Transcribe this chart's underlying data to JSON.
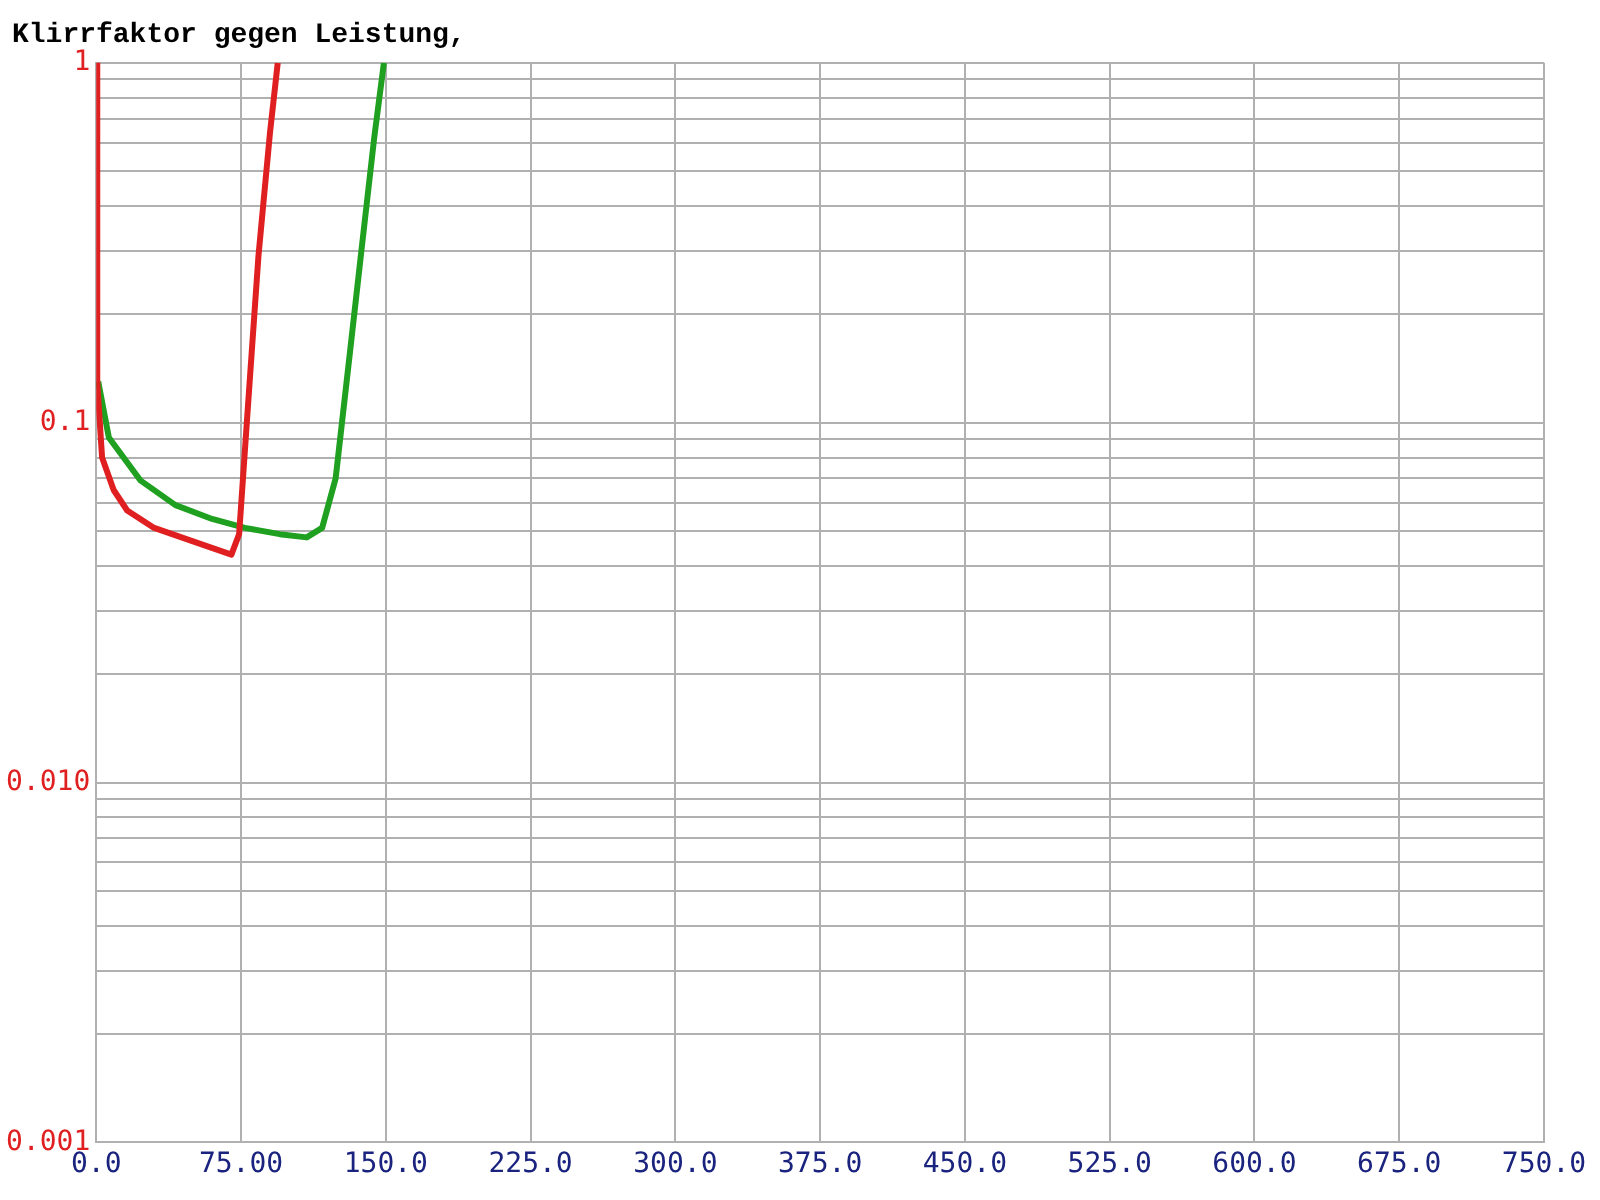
{
  "chart_data": {
    "type": "line",
    "title": "Klirrfaktor gegen Leistung,",
    "log": "y",
    "grid": true,
    "legend": false,
    "marker": "none",
    "line_style": "solid",
    "xlim": [
      0,
      750
    ],
    "ylim": [
      0.001,
      1
    ],
    "xticks": [
      {
        "value": 0,
        "label": "0.0"
      },
      {
        "value": 75,
        "label": "75.00"
      },
      {
        "value": 150,
        "label": "150.0"
      },
      {
        "value": 225,
        "label": "225.0"
      },
      {
        "value": 300,
        "label": "300.0"
      },
      {
        "value": 375,
        "label": "375.0"
      },
      {
        "value": 450,
        "label": "450.0"
      },
      {
        "value": 525,
        "label": "525.0"
      },
      {
        "value": 600,
        "label": "600.0"
      },
      {
        "value": 675,
        "label": "675.0"
      },
      {
        "value": 750,
        "label": "750.0"
      }
    ],
    "yticks": [
      {
        "value": 0.001,
        "label": "0.001"
      },
      {
        "value": 0.002,
        "label": null
      },
      {
        "value": 0.003,
        "label": null
      },
      {
        "value": 0.004,
        "label": null
      },
      {
        "value": 0.005,
        "label": null
      },
      {
        "value": 0.006,
        "label": null
      },
      {
        "value": 0.007,
        "label": null
      },
      {
        "value": 0.008,
        "label": null
      },
      {
        "value": 0.009,
        "label": null
      },
      {
        "value": 0.01,
        "label": "0.010"
      },
      {
        "value": 0.02,
        "label": null
      },
      {
        "value": 0.03,
        "label": null
      },
      {
        "value": 0.04,
        "label": null
      },
      {
        "value": 0.05,
        "label": null
      },
      {
        "value": 0.06,
        "label": null
      },
      {
        "value": 0.07,
        "label": null
      },
      {
        "value": 0.08,
        "label": null
      },
      {
        "value": 0.09,
        "label": null
      },
      {
        "value": 0.1,
        "label": "0.1"
      },
      {
        "value": 0.2,
        "label": null
      },
      {
        "value": 0.3,
        "label": null
      },
      {
        "value": 0.4,
        "label": null
      },
      {
        "value": 0.5,
        "label": null
      },
      {
        "value": 0.6,
        "label": null
      },
      {
        "value": 0.7,
        "label": null
      },
      {
        "value": 0.8,
        "label": null
      },
      {
        "value": 0.9,
        "label": null
      },
      {
        "value": 1,
        "label": "1"
      }
    ],
    "series": [
      {
        "color": "#e02020",
        "x": [
          0.5,
          0.5,
          1,
          3,
          9,
          16,
          30,
          49,
          70,
          74,
          79,
          84,
          90,
          94
        ],
        "values": [
          1,
          0.13,
          0.117,
          0.08,
          0.065,
          0.057,
          0.051,
          0.047,
          0.043,
          0.049,
          0.12,
          0.29,
          0.64,
          1
        ]
      },
      {
        "color": "#20a020",
        "x": [
          1,
          6.5,
          23,
          41,
          60,
          77,
          95,
          109,
          117,
          124,
          131,
          139,
          144,
          149
        ],
        "values": [
          0.13,
          0.091,
          0.069,
          0.059,
          0.054,
          0.051,
          0.049,
          0.048,
          0.051,
          0.07,
          0.15,
          0.36,
          0.62,
          1
        ]
      }
    ]
  }
}
